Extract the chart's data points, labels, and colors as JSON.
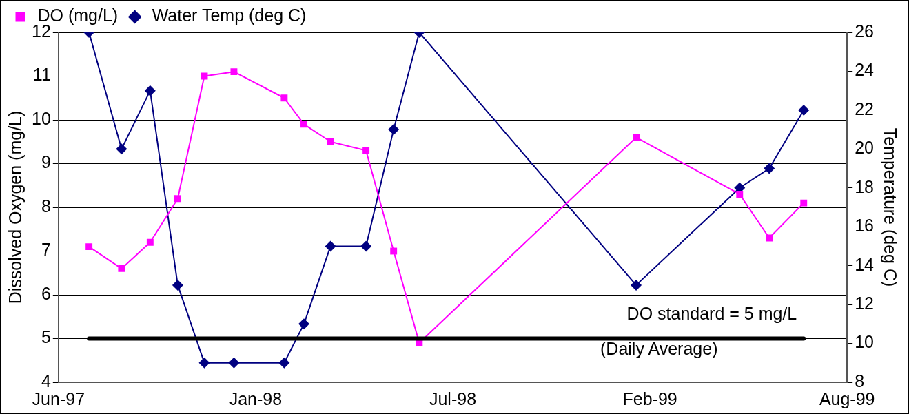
{
  "chart_data": {
    "type": "line",
    "ylabel": "Dissolved Oxygen (mg/L)",
    "y2label": "Temperature (deg C)",
    "x": [
      "1997-07-16",
      "1997-08-18",
      "1997-09-16",
      "1997-10-14",
      "1997-11-10",
      "1997-12-10",
      "1998-01-30",
      "1998-02-19",
      "1998-03-18",
      "1998-04-23",
      "1998-05-21",
      "1998-06-16",
      "1999-01-22",
      "1999-05-07",
      "1999-06-06",
      "1999-07-11"
    ],
    "series": [
      {
        "name": "DO (mg/L)",
        "color": "#ff00ff",
        "marker": "square",
        "values": [
          7.1,
          6.6,
          7.2,
          8.2,
          11.0,
          11.1,
          10.5,
          9.9,
          9.5,
          9.3,
          7.0,
          4.9,
          9.6,
          8.3,
          7.3,
          8.1
        ]
      },
      {
        "name": "Water Temp (deg C)",
        "color": "#000080",
        "marker": "diamond",
        "axis": "y2",
        "values": [
          26,
          20,
          23,
          13,
          9,
          9,
          9,
          11,
          15,
          15,
          21,
          26,
          13,
          18,
          19,
          22
        ]
      }
    ],
    "xlim": [
      "1997-06-15",
      "1999-08-24"
    ],
    "xticks": [
      {
        "value": "1997-06-15",
        "label": "Jun-97"
      },
      {
        "value": "1998-01-01",
        "label": "Jan-98"
      },
      {
        "value": "1998-07-20",
        "label": "Jul-98"
      },
      {
        "value": "1999-02-05",
        "label": "Feb-99"
      },
      {
        "value": "1999-08-24",
        "label": "Aug-99"
      }
    ],
    "ylim": [
      4,
      12
    ],
    "yticks": [
      4,
      5,
      6,
      7,
      8,
      9,
      10,
      11,
      12
    ],
    "y2lim": [
      8,
      26
    ],
    "y2ticks": [
      8,
      10,
      12,
      14,
      16,
      18,
      20,
      22,
      24,
      26
    ],
    "ref_lines": [
      {
        "axis": "y",
        "value": 5,
        "label": "DO standard = 5 mg/L",
        "color": "#000000"
      }
    ],
    "annotations": [
      "(Daily Average)"
    ],
    "grid": "y",
    "legend": "top left",
    "line_style": "solid"
  }
}
